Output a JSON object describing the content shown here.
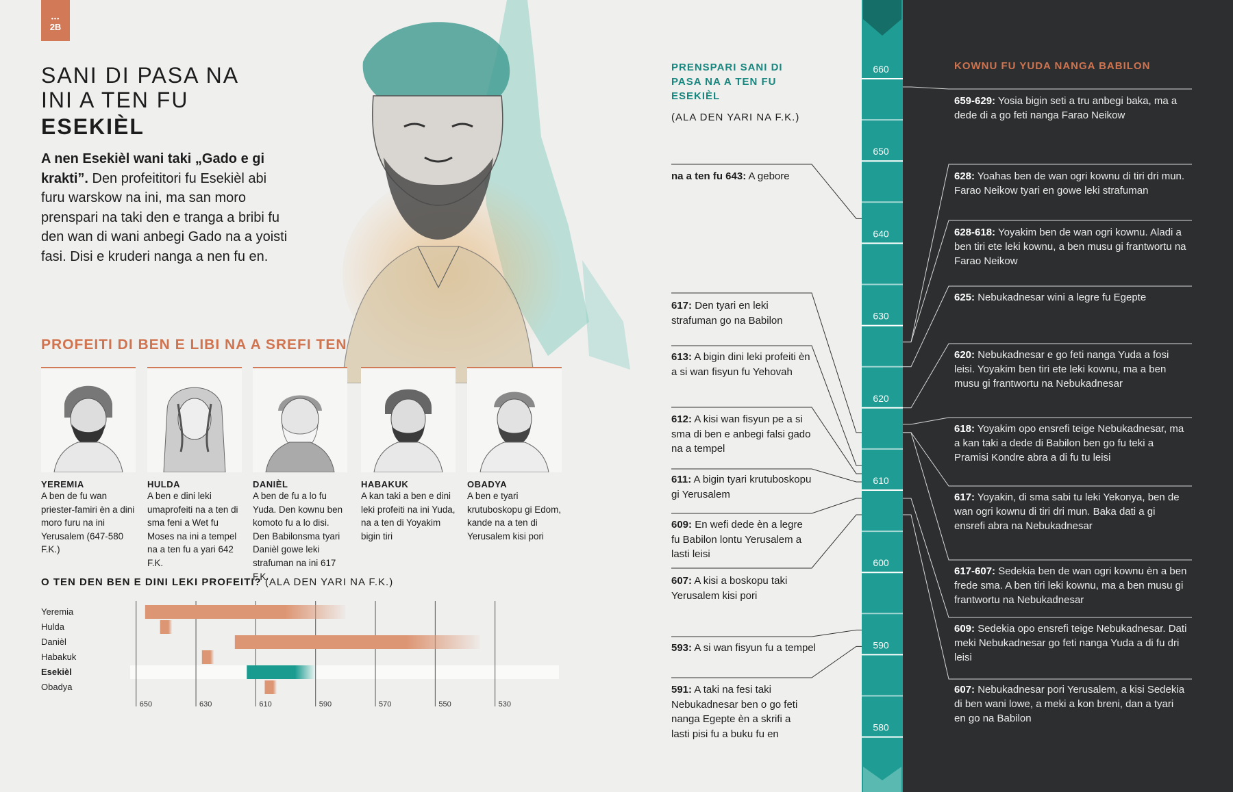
{
  "page_tag": "2B",
  "title_light": "SANI DI PASA NA INI A TEN FU",
  "title_bold": "ESEKIÈL",
  "intro_bold": "A nen Esekièl wani taki „Gado e gi krakti”.",
  "intro_text": " Den profeititori fu Esekièl abi furu warskow na ini, ma san moro prenspari na taki den e tranga a bribi fu den wan di wani anbegi Gado na a yoisti fasi. Disi e kruderi nanga a nen fu en.",
  "section_prophets": "PROFEITI DI BEN E LIBI NA A SREFI TEN",
  "prophets": [
    {
      "name": "YEREMIA",
      "desc": "A ben de fu wan priester-famiri èn a dini moro furu na ini Yerusalem (647-580 F.K.)"
    },
    {
      "name": "HULDA",
      "desc": "A ben e dini leki umaprofeiti na a ten di sma feni a Wet fu Moses na ini a tempel na a ten fu a yari 642 F.K."
    },
    {
      "name": "DANIÈL",
      "desc": "A ben de fu a lo fu Yuda. Den kownu ben komoto fu a lo disi. Den Babilonsma tyari Danièl gowe leki strafuman na ini 617 F.K."
    },
    {
      "name": "HABAKUK",
      "desc": "A kan taki a ben e dini leki profeiti na ini Yuda, na a ten di Yoyakim bigin tiri"
    },
    {
      "name": "OBADYA",
      "desc": "A ben e tyari krutuboskopu gi Edom, kande na a ten di Yerusalem kisi pori"
    }
  ],
  "chart_heading_bold": "O TEN DEN BEN E DINI LEKI PROFEITI?",
  "chart_heading_rest": " (ALA DEN YARI NA F.K.)",
  "chart_data": {
    "type": "bar",
    "orientation": "horizontal-range",
    "categories": [
      "Yeremia",
      "Hulda",
      "Danièl",
      "Habakuk",
      "Esekièl",
      "Obadya"
    ],
    "highlight": "Esekièl",
    "x_ticks": [
      650,
      630,
      610,
      590,
      570,
      550,
      530
    ],
    "xlim": [
      652,
      510
    ],
    "ranges": [
      [
        647,
        580
      ],
      [
        642,
        638
      ],
      [
        617,
        535
      ],
      [
        628,
        624
      ],
      [
        613,
        590
      ],
      [
        607,
        603
      ]
    ],
    "colors": {
      "default": "#dd9674",
      "highlight": "#1a9b8f"
    }
  },
  "timeline_heading": "PRENSPARI SANI DI PASA NA A TEN FU ESEKIÈL",
  "timeline_sub": "(ALA DEN YARI NA F.K.)",
  "left_events": [
    {
      "year": "na a ten fu 643:",
      "text": " A gebore"
    },
    {
      "year": "617:",
      "text": " Den tyari en leki strafuman go na Babilon"
    },
    {
      "year": "613:",
      "text": " A bigin dini leki profeiti èn a si wan fisyun fu Yehovah"
    },
    {
      "year": "612:",
      "text": " A kisi wan fisyun pe a si sma di ben e anbegi falsi gado na a tempel"
    },
    {
      "year": "611:",
      "text": " A bigin tyari krutuboskopu gi Yerusalem"
    },
    {
      "year": "609:",
      "text": " En wefi dede èn a legre fu Babilon lontu Yerusalem a lasti leisi"
    },
    {
      "year": "607:",
      "text": " A kisi a boskopu taki Yerusalem kisi pori"
    },
    {
      "year": "593:",
      "text": " A si wan fisyun fu a tempel"
    },
    {
      "year": "591:",
      "text": " A taki na fesi taki Nebukadnesar ben o go feti nanga Egepte èn a skrifi a lasti pisi fu a buku fu en"
    }
  ],
  "scale_labels": [
    "660",
    "650",
    "640",
    "630",
    "620",
    "610",
    "600",
    "590",
    "580"
  ],
  "right_heading": "KOWNU FU YUDA NANGA BABILON",
  "right_events": [
    {
      "year": "659-629:",
      "text": " Yosia bigin seti a tru anbegi baka, ma a dede di a go feti nanga Farao Neikow"
    },
    {
      "year": "628:",
      "text": " Yoahas ben de wan ogri kownu di tiri dri mun. Farao Neikow tyari en gowe leki strafuman"
    },
    {
      "year": "628-618:",
      "text": " Yoyakim ben de wan ogri kownu. Aladi a ben tiri ete leki kownu, a ben musu gi frantwortu na Farao Neikow"
    },
    {
      "year": "625:",
      "text": " Nebukadnesar wini a legre fu Egepte"
    },
    {
      "year": "620:",
      "text": " Nebukadnesar e go feti nanga Yuda a fosi leisi. Yoyakim ben tiri ete leki kownu, ma a ben musu gi frantwortu na Nebukadnesar"
    },
    {
      "year": "618:",
      "text": " Yoyakim opo ensrefi teige Nebukadnesar, ma a kan taki a dede di Babilon ben go fu teki a Pramisi Kondre abra a di fu tu leisi"
    },
    {
      "year": "617:",
      "text": " Yoyakin, di sma sabi tu leki Yekonya, ben de wan ogri kownu di tiri dri mun. Baka dati a gi ensrefi abra na Nebukadnesar"
    },
    {
      "year": "617-607:",
      "text": " Sedekia ben de wan ogri kownu èn a ben frede sma. A ben tiri leki kownu, ma a ben musu gi frantwortu na Nebukadnesar"
    },
    {
      "year": "609:",
      "text": " Sedekia opo ensrefi teige Nebukadnesar. Dati meki Nebukadnesar go feti nanga Yuda a di fu dri leisi"
    },
    {
      "year": "607:",
      "text": " Nebukadnesar pori Yerusalem, a kisi Sedekia di ben wani lowe, a meki a kon breni, dan a tyari en go na Babilon"
    }
  ]
}
